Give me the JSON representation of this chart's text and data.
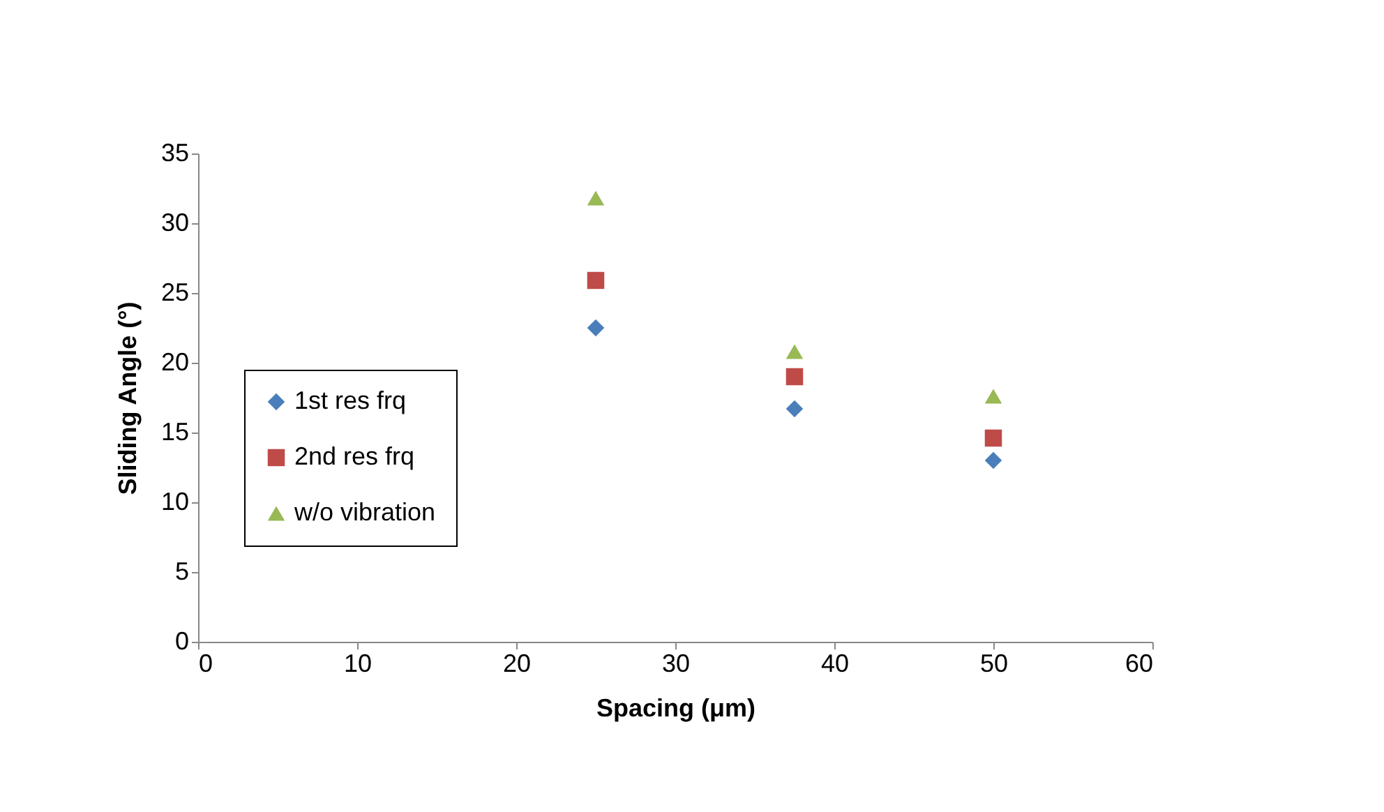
{
  "chart_data": {
    "type": "scatter",
    "xlabel": "Spacing (μm)",
    "ylabel": "Sliding Angle (°)",
    "x": [
      25,
      37.5,
      50
    ],
    "series": [
      {
        "name": "1st res frq",
        "color": "#4a7ebb",
        "marker": "diamond",
        "values": [
          22.5,
          16.7,
          13.0
        ]
      },
      {
        "name": "2nd res frq",
        "color": "#be4b48",
        "marker": "square",
        "values": [
          25.9,
          19.0,
          14.6
        ]
      },
      {
        "name": "w/o vibration",
        "color": "#98b954",
        "marker": "triangle",
        "values": [
          31.8,
          20.8,
          17.6
        ]
      }
    ],
    "xlim": [
      0,
      60
    ],
    "xticks": [
      0,
      10,
      20,
      30,
      40,
      50,
      60
    ],
    "ylim": [
      0,
      35
    ],
    "yticks": [
      0,
      5,
      10,
      15,
      20,
      25,
      30,
      35
    ],
    "grid": false,
    "legend": "left"
  }
}
